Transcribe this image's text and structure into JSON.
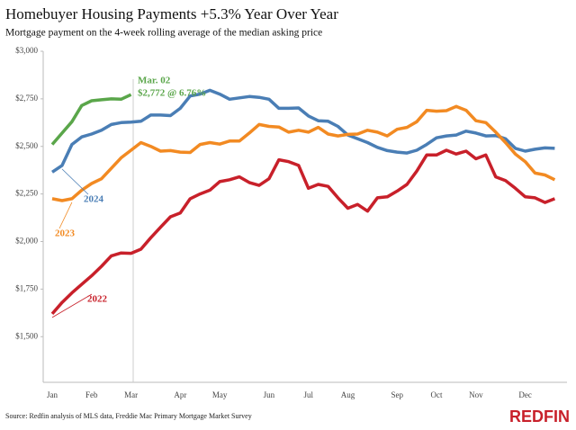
{
  "chart_data": {
    "type": "line",
    "title": "Homebuyer Housing Payments +5.3% Year Over Year",
    "subtitle": "Mortgage payment on the 4-week rolling average of the median asking price",
    "source": "Source: Redfin analysis of MLS data, Freddie Mac Primary Mortgage Market Survey",
    "logo": "REDFIN",
    "annotations": [
      "Mar. 02",
      "$2,772 @ 6.76%"
    ],
    "categories": [
      "Jan",
      null,
      null,
      null,
      "Feb",
      null,
      null,
      null,
      "Mar",
      null,
      null,
      null,
      null,
      "Apr",
      null,
      null,
      null,
      "May",
      null,
      null,
      null,
      null,
      "Jun",
      null,
      null,
      null,
      "Jul",
      null,
      null,
      null,
      "Aug",
      null,
      null,
      null,
      null,
      "Sep",
      null,
      null,
      null,
      "Oct",
      null,
      null,
      null,
      "Nov",
      null,
      null,
      null,
      null,
      "Dec",
      null,
      null,
      null
    ],
    "ylim": [
      1260,
      3000
    ],
    "yticks": [
      {
        "value": 1500,
        "label": "$1,500"
      },
      {
        "value": 1750,
        "label": "$1,750"
      },
      {
        "value": 2000,
        "label": "$2,000"
      },
      {
        "value": 2250,
        "label": "$2,250"
      },
      {
        "value": 2500,
        "label": "$2,500"
      },
      {
        "value": 2750,
        "label": "$2,750"
      },
      {
        "value": 3000,
        "label": "$3,000"
      }
    ],
    "grid": false,
    "series": [
      {
        "name": "2024",
        "color": "#4a7eb5",
        "values": [
          2365,
          2400,
          2510,
          2550,
          2565,
          2585,
          2615,
          2625,
          2628,
          2632,
          2665,
          2665,
          2662,
          2700,
          2765,
          2775,
          2795,
          2775,
          2748,
          2755,
          2762,
          2758,
          2748,
          2700,
          2700,
          2702,
          2660,
          2635,
          2632,
          2605,
          2560,
          2540,
          2520,
          2495,
          2478,
          2470,
          2465,
          2480,
          2510,
          2545,
          2555,
          2560,
          2580,
          2570,
          2555,
          2557,
          2540,
          2490,
          2475,
          2485,
          2492,
          2490
        ]
      },
      {
        "name": "2023",
        "color": "#f28a22",
        "values": [
          2225,
          2215,
          2225,
          2270,
          2305,
          2330,
          2385,
          2440,
          2480,
          2520,
          2500,
          2475,
          2478,
          2470,
          2468,
          2510,
          2520,
          2512,
          2528,
          2528,
          2570,
          2615,
          2605,
          2602,
          2575,
          2585,
          2575,
          2600,
          2565,
          2555,
          2563,
          2565,
          2585,
          2575,
          2555,
          2590,
          2600,
          2630,
          2690,
          2685,
          2688,
          2710,
          2690,
          2635,
          2625,
          2575,
          2520,
          2460,
          2420,
          2360,
          2350,
          2325
        ]
      },
      {
        "name": "2022",
        "color": "#c8202a",
        "values": [
          1620,
          1680,
          1730,
          1775,
          1820,
          1870,
          1925,
          1940,
          1938,
          1960,
          2020,
          2075,
          2130,
          2150,
          2225,
          2250,
          2270,
          2315,
          2325,
          2340,
          2310,
          2295,
          2330,
          2430,
          2420,
          2400,
          2280,
          2300,
          2290,
          2230,
          2175,
          2195,
          2160,
          2230,
          2235,
          2265,
          2300,
          2370,
          2455,
          2455,
          2480,
          2460,
          2475,
          2435,
          2455,
          2340,
          2320,
          2280,
          2235,
          2230,
          2205,
          2225
        ]
      },
      {
        "color": "#5aa64a",
        "values": [
          2510,
          2570,
          2630,
          2715,
          2740,
          2745,
          2750,
          2748,
          2772,
          null,
          null,
          null,
          null,
          null,
          null,
          null,
          null,
          null,
          null,
          null,
          null,
          null,
          null,
          null,
          null,
          null,
          null,
          null,
          null,
          null,
          null,
          null,
          null,
          null,
          null,
          null,
          null,
          null,
          null,
          null,
          null,
          null,
          null,
          null,
          null,
          null,
          null,
          null,
          null,
          null,
          null,
          null
        ]
      }
    ]
  }
}
